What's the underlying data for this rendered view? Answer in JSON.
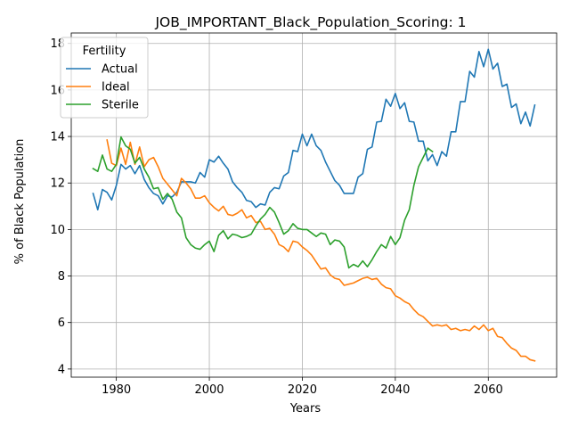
{
  "chart_data": {
    "type": "line",
    "title": "JOB_IMPORTANT_Black_Population_Scoring: 1",
    "xlabel": "Years",
    "ylabel": "% of Black Population",
    "xlim": [
      1970.3,
      2074.7
    ],
    "ylim": [
      3.65,
      18.45
    ],
    "xticks": [
      1980,
      2000,
      2020,
      2040,
      2060
    ],
    "yticks": [
      4,
      6,
      8,
      10,
      12,
      14,
      16,
      18
    ],
    "grid": true,
    "legend": {
      "title": "Fertility",
      "placement": "top-left"
    },
    "series": [
      {
        "name": "Actual",
        "color": "#1f77b4",
        "x": [
          1975,
          1976,
          1977,
          1978,
          1979,
          1980,
          1981,
          1982,
          1983,
          1984,
          1985,
          1986,
          1987,
          1988,
          1989,
          1990,
          1991,
          1992,
          1993,
          1994,
          1995,
          1996,
          1997,
          1998,
          1999,
          2000,
          2001,
          2002,
          2003,
          2004,
          2005,
          2006,
          2007,
          2008,
          2009,
          2010,
          2011,
          2012,
          2013,
          2014,
          2015,
          2016,
          2017,
          2018,
          2019,
          2020,
          2021,
          2022,
          2023,
          2024,
          2025,
          2026,
          2027,
          2028,
          2029,
          2030,
          2031,
          2032,
          2033,
          2034,
          2035,
          2036,
          2037,
          2038,
          2039,
          2040,
          2041,
          2042,
          2043,
          2044,
          2045,
          2046,
          2047,
          2048,
          2049,
          2050,
          2051,
          2052,
          2053,
          2054,
          2055,
          2056,
          2057,
          2058,
          2059,
          2060,
          2061,
          2062,
          2063,
          2064,
          2065,
          2066,
          2067,
          2068,
          2069,
          2070
        ],
        "values": [
          11.55,
          10.85,
          11.72,
          11.6,
          11.27,
          11.9,
          12.8,
          12.6,
          12.75,
          12.4,
          12.75,
          12.15,
          11.8,
          11.55,
          11.45,
          11.1,
          11.45,
          11.4,
          11.6,
          12.05,
          12.05,
          12.05,
          12.0,
          12.45,
          12.25,
          13.0,
          12.9,
          13.15,
          12.85,
          12.6,
          12.05,
          11.8,
          11.6,
          11.25,
          11.2,
          10.95,
          11.1,
          11.05,
          11.6,
          11.8,
          11.75,
          12.3,
          12.45,
          13.4,
          13.35,
          14.1,
          13.6,
          14.1,
          13.6,
          13.4,
          12.9,
          12.5,
          12.1,
          11.9,
          11.55,
          11.55,
          11.55,
          12.25,
          12.4,
          13.45,
          13.55,
          14.62,
          14.65,
          15.6,
          15.3,
          15.85,
          15.2,
          15.45,
          14.65,
          14.62,
          13.8,
          13.8,
          12.95,
          13.22,
          12.75,
          13.35,
          13.15,
          14.2,
          14.2,
          15.5,
          15.5,
          16.8,
          16.55,
          17.65,
          17.0,
          17.75,
          16.9,
          17.15,
          16.15,
          16.25,
          15.25,
          15.4,
          14.55,
          15.05,
          14.45,
          15.35
        ]
      },
      {
        "name": "Ideal",
        "color": "#ff7f0e",
        "x": [
          1978,
          1979,
          1980,
          1981,
          1982,
          1983,
          1984,
          1985,
          1986,
          1987,
          1988,
          1989,
          1990,
          1991,
          1992,
          1993,
          1994,
          1995,
          1996,
          1997,
          1998,
          1999,
          2000,
          2001,
          2002,
          2003,
          2004,
          2005,
          2006,
          2007,
          2008,
          2009,
          2010,
          2011,
          2012,
          2013,
          2014,
          2015,
          2016,
          2017,
          2018,
          2019,
          2020,
          2021,
          2022,
          2023,
          2024,
          2025,
          2026,
          2027,
          2028,
          2029,
          2030,
          2031,
          2032,
          2033,
          2034,
          2035,
          2036,
          2037,
          2038,
          2039,
          2040,
          2041,
          2042,
          2043,
          2044,
          2045,
          2046,
          2047,
          2048,
          2049,
          2050,
          2051,
          2052,
          2053,
          2054,
          2055,
          2056,
          2057,
          2058,
          2059,
          2060,
          2061,
          2062,
          2063,
          2064,
          2065,
          2066,
          2067,
          2068,
          2069,
          2070
        ],
        "values": [
          13.85,
          12.85,
          12.75,
          13.5,
          12.8,
          13.75,
          12.8,
          13.55,
          12.7,
          13.0,
          13.1,
          12.7,
          12.2,
          11.95,
          11.7,
          11.45,
          12.2,
          12.0,
          11.75,
          11.35,
          11.35,
          11.45,
          11.15,
          10.95,
          10.8,
          11.0,
          10.65,
          10.6,
          10.7,
          10.85,
          10.5,
          10.6,
          10.3,
          10.35,
          10.0,
          10.05,
          9.8,
          9.35,
          9.25,
          9.05,
          9.5,
          9.45,
          9.25,
          9.1,
          8.9,
          8.6,
          8.3,
          8.35,
          8.05,
          7.9,
          7.85,
          7.6,
          7.65,
          7.7,
          7.8,
          7.9,
          7.95,
          7.85,
          7.9,
          7.65,
          7.5,
          7.45,
          7.15,
          7.05,
          6.9,
          6.8,
          6.55,
          6.35,
          6.25,
          6.05,
          5.85,
          5.9,
          5.85,
          5.9,
          5.7,
          5.75,
          5.65,
          5.7,
          5.65,
          5.85,
          5.7,
          5.9,
          5.65,
          5.75,
          5.4,
          5.35,
          5.1,
          4.9,
          4.8,
          4.55,
          4.55,
          4.4,
          4.35
        ]
      },
      {
        "name": "Sterile",
        "color": "#2ca02c",
        "x": [
          1975,
          1976,
          1977,
          1978,
          1979,
          1980,
          1981,
          1982,
          1983,
          1984,
          1985,
          1986,
          1987,
          1988,
          1989,
          1990,
          1991,
          1992,
          1993,
          1994,
          1995,
          1996,
          1997,
          1998,
          1999,
          2000,
          2001,
          2002,
          2003,
          2004,
          2005,
          2006,
          2007,
          2008,
          2009,
          2010,
          2011,
          2012,
          2013,
          2014,
          2015,
          2016,
          2017,
          2018,
          2019,
          2020,
          2021,
          2022,
          2023,
          2024,
          2025,
          2026,
          2027,
          2028,
          2029,
          2030,
          2031,
          2032,
          2033,
          2034,
          2035,
          2036,
          2037,
          2038,
          2039,
          2040,
          2041,
          2042,
          2043,
          2044,
          2045,
          2046,
          2047,
          2048
        ],
        "values": [
          12.62,
          12.5,
          13.2,
          12.6,
          12.5,
          12.8,
          13.98,
          13.6,
          13.45,
          12.85,
          13.1,
          12.6,
          12.25,
          11.75,
          11.8,
          11.3,
          11.55,
          11.3,
          10.75,
          10.5,
          9.65,
          9.35,
          9.2,
          9.15,
          9.35,
          9.5,
          9.05,
          9.75,
          9.95,
          9.6,
          9.8,
          9.75,
          9.65,
          9.7,
          9.8,
          10.15,
          10.45,
          10.65,
          10.95,
          10.75,
          10.3,
          9.8,
          9.95,
          10.25,
          10.05,
          10.0,
          10.0,
          9.85,
          9.7,
          9.85,
          9.8,
          9.35,
          9.55,
          9.5,
          9.25,
          8.35,
          8.5,
          8.4,
          8.65,
          8.4,
          8.7,
          9.05,
          9.35,
          9.2,
          9.7,
          9.35,
          9.65,
          10.4,
          10.85,
          11.9,
          12.7,
          13.1,
          13.5,
          13.35
        ]
      }
    ]
  }
}
